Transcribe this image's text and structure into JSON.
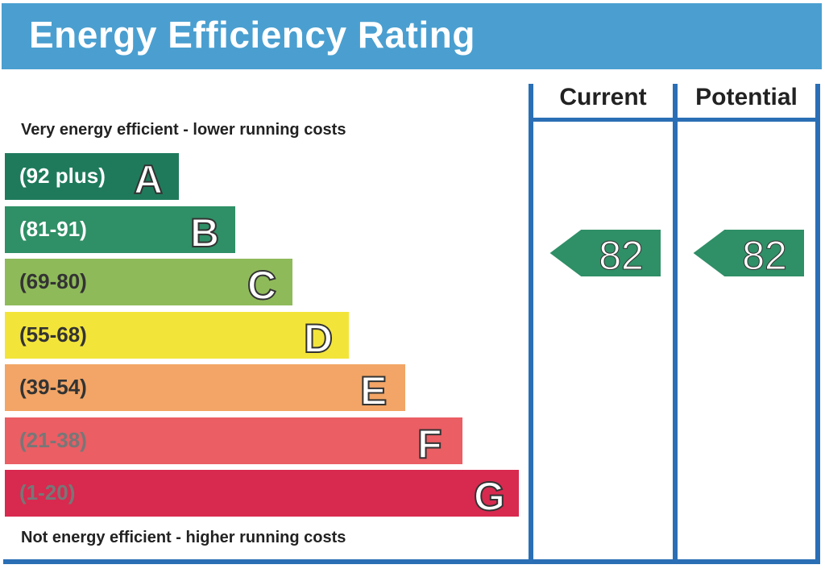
{
  "title": "Energy Efficiency Rating",
  "columns": {
    "current": "Current",
    "potential": "Potential"
  },
  "captions": {
    "top": "Very energy efficient - lower running costs",
    "bottom": "Not energy efficient - higher running costs"
  },
  "chart_data": {
    "type": "bar",
    "title": "Energy Efficiency Rating",
    "categories": [
      "A",
      "B",
      "C",
      "D",
      "E",
      "F",
      "G"
    ],
    "ranges": [
      "(92 plus)",
      "(81-91)",
      "(69-80)",
      "(55-68)",
      "(39-54)",
      "(21-38)",
      "(1-20)"
    ],
    "colors": [
      "#1f7a5c",
      "#2f8f66",
      "#8fba5a",
      "#f3e43a",
      "#f2a566",
      "#ea5e64",
      "#d8294f"
    ],
    "range_text_colors": [
      "#ffffff",
      "#ffffff",
      "#333333",
      "#333333",
      "#333333",
      "#777777",
      "#777777"
    ],
    "current": 82,
    "potential": 82,
    "current_band": "B",
    "potential_band": "B"
  }
}
